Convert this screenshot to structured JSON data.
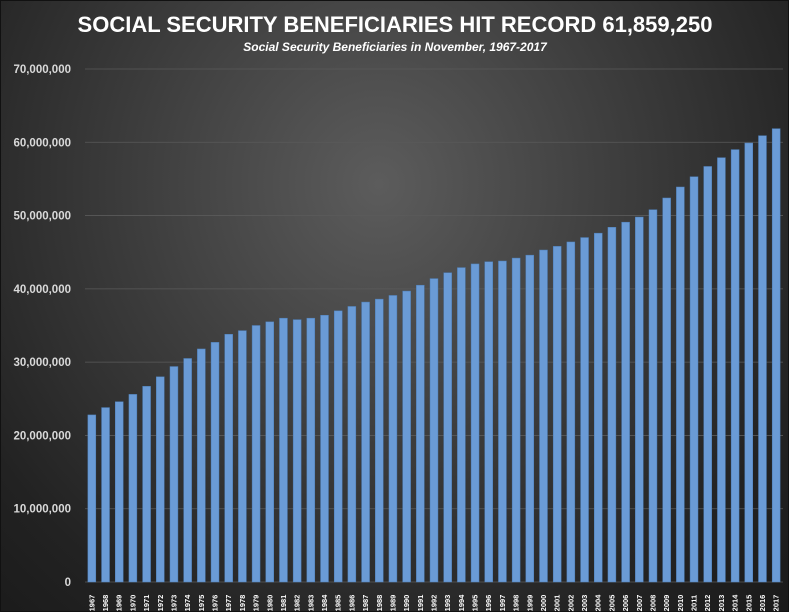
{
  "colors": {
    "bar": "#6a9bd6",
    "text": "#ffffff"
  },
  "chart_data": {
    "type": "bar",
    "title": "SOCIAL SECURITY BENEFICIARIES HIT RECORD 61,859,250",
    "subtitle": "Social Security Beneficiaries in November, 1967-2017",
    "xlabel": "",
    "ylabel": "",
    "ylim": [
      0,
      70000000
    ],
    "yticks": [
      0,
      10000000,
      20000000,
      30000000,
      40000000,
      50000000,
      60000000,
      70000000
    ],
    "ytick_labels": [
      "0",
      "10,000,000",
      "20,000,000",
      "30,000,000",
      "40,000,000",
      "50,000,000",
      "60,000,000",
      "70,000,000"
    ],
    "grid": true,
    "categories": [
      "1967",
      "1968",
      "1969",
      "1970",
      "1971",
      "1972",
      "1973",
      "1974",
      "1975",
      "1976",
      "1977",
      "1978",
      "1979",
      "1980",
      "1981",
      "1982",
      "1983",
      "1984",
      "1985",
      "1986",
      "1987",
      "1988",
      "1989",
      "1990",
      "1991",
      "1992",
      "1993",
      "1994",
      "1995",
      "1996",
      "1997",
      "1998",
      "1999",
      "2000",
      "2001",
      "2002",
      "2003",
      "2004",
      "2005",
      "2006",
      "2007",
      "2008",
      "2009",
      "2010",
      "2011",
      "2012",
      "2013",
      "2014",
      "2015",
      "2016",
      "2017"
    ],
    "values": [
      22800000,
      23800000,
      24600000,
      25600000,
      26700000,
      28000000,
      29400000,
      30500000,
      31800000,
      32700000,
      33800000,
      34300000,
      35000000,
      35500000,
      36000000,
      35800000,
      36000000,
      36400000,
      37000000,
      37600000,
      38200000,
      38600000,
      39100000,
      39700000,
      40500000,
      41400000,
      42200000,
      42900000,
      43400000,
      43700000,
      43800000,
      44200000,
      44600000,
      45300000,
      45800000,
      46400000,
      47000000,
      47600000,
      48400000,
      49100000,
      49800000,
      50800000,
      52400000,
      53900000,
      55300000,
      56700000,
      57900000,
      59000000,
      59900000,
      60900000,
      61859250
    ]
  }
}
